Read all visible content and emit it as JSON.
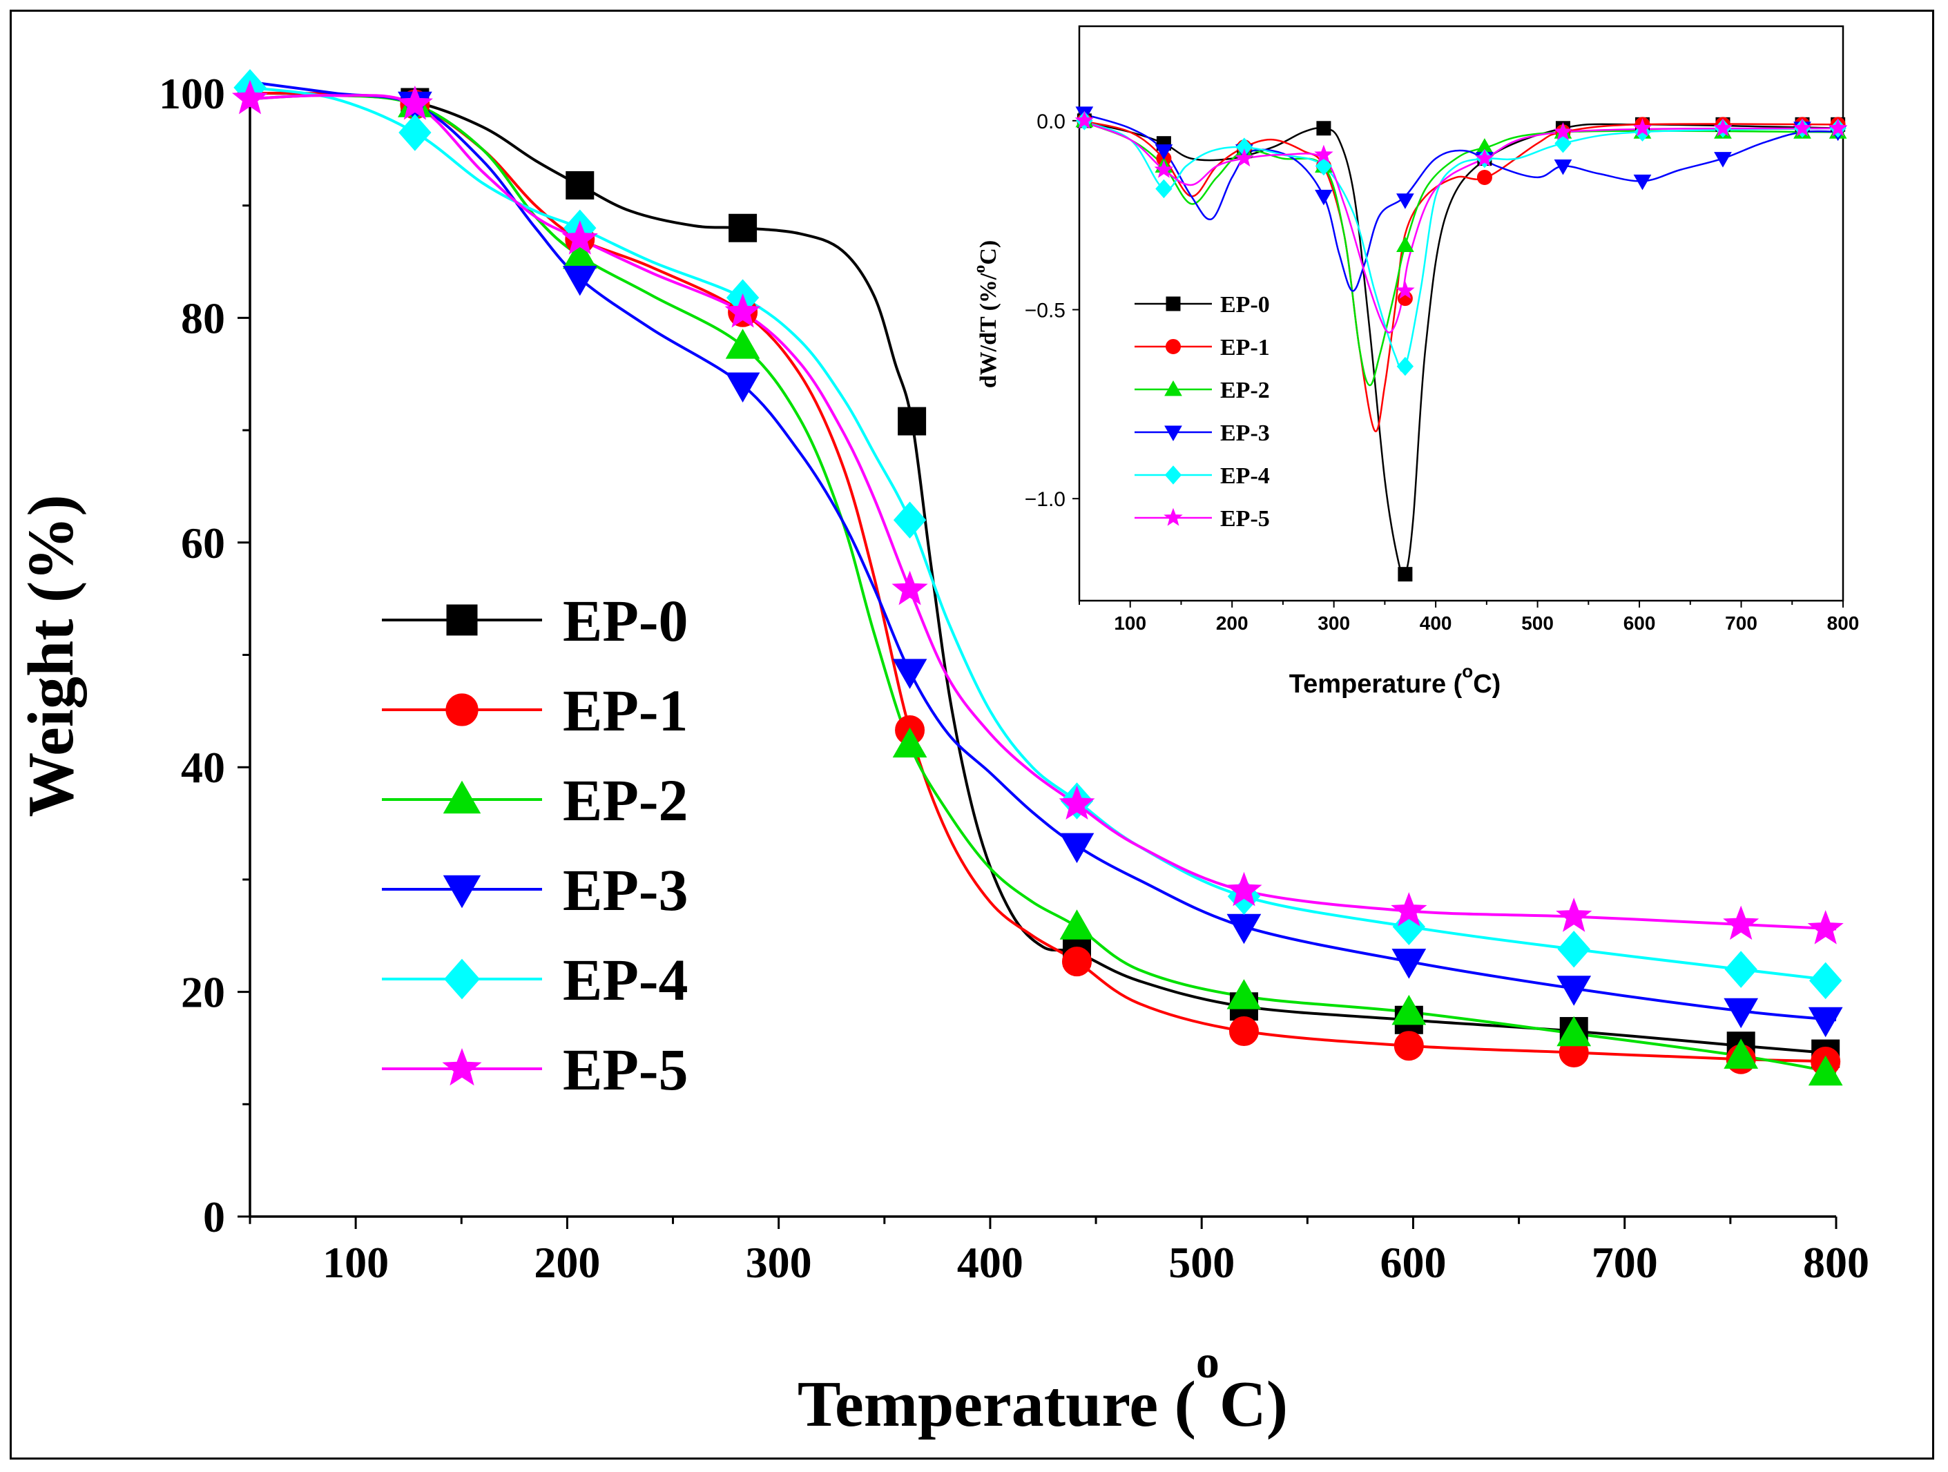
{
  "chart_data": [
    {
      "type": "line",
      "name": "TGA weight loss",
      "xlabel": "Temperature (",
      "xlabel_superscript": "o",
      "xlabel_unit": "C)",
      "ylabel": "Weight (%)",
      "xlim": [
        50,
        800
      ],
      "ylim": [
        0,
        100
      ],
      "xticks": [
        "100",
        "200",
        "300",
        "400",
        "500",
        "600",
        "700",
        "800"
      ],
      "yticks": [
        "0",
        "20",
        "40",
        "60",
        "80",
        "100"
      ],
      "legend_position": "center-left",
      "series": [
        {
          "name": "EP-0",
          "color": "#000000",
          "marker": "square",
          "x": [
            50,
            90,
            128,
            160,
            185,
            206,
            230,
            260,
            283,
            310,
            330,
            345,
            355,
            363,
            372,
            382,
            395,
            410,
            425,
            441,
            470,
            520,
            598,
            676,
            755,
            800
          ],
          "y": [
            100,
            99.9,
            99.2,
            97,
            94,
            91.8,
            89.5,
            88.2,
            88,
            87.5,
            86,
            82,
            76,
            70.8,
            58,
            45,
            34,
            27,
            24,
            23.5,
            21,
            18.7,
            17.5,
            16.5,
            15.2,
            14.5
          ],
          "mx": [
            128,
            206,
            283,
            363,
            441,
            520,
            598,
            676,
            755,
            795
          ],
          "my": [
            99.2,
            91.8,
            88,
            70.8,
            23.5,
            18.7,
            17.5,
            16.5,
            15.2,
            14.5
          ]
        },
        {
          "name": "EP-1",
          "color": "#ff0000",
          "marker": "circle",
          "x": [
            50,
            90,
            128,
            160,
            185,
            206,
            240,
            283,
            310,
            330,
            345,
            362,
            380,
            400,
            420,
            441,
            470,
            520,
            598,
            676,
            755,
            800
          ],
          "y": [
            100,
            99.9,
            99,
            95,
            90,
            87,
            84.5,
            80.5,
            75,
            67,
            57,
            43.3,
            34,
            28,
            25,
            22.7,
            19,
            16.5,
            15.2,
            14.6,
            14,
            13.8
          ],
          "mx": [
            128,
            206,
            283,
            362,
            441,
            520,
            598,
            676,
            755,
            795
          ],
          "my": [
            99,
            87,
            80.5,
            43.3,
            22.7,
            16.5,
            15.2,
            14.6,
            14,
            13.8
          ]
        },
        {
          "name": "EP-2",
          "color": "#00e000",
          "marker": "triangle-up",
          "x": [
            50,
            90,
            128,
            160,
            185,
            206,
            240,
            283,
            310,
            330,
            345,
            362,
            380,
            400,
            420,
            441,
            470,
            520,
            598,
            676,
            755,
            800
          ],
          "y": [
            99.5,
            99.8,
            99,
            95,
            89,
            85.5,
            82,
            77.5,
            71,
            62,
            52,
            42,
            36,
            31,
            28,
            25.8,
            22,
            19.6,
            18.2,
            16.3,
            14.3,
            12.8
          ],
          "mx": [
            128,
            206,
            283,
            362,
            441,
            520,
            598,
            676,
            755,
            795
          ],
          "my": [
            99,
            85.5,
            77.5,
            42,
            25.8,
            19.6,
            18.2,
            16.3,
            14.3,
            12.8
          ]
        },
        {
          "name": "EP-3",
          "color": "#0000ff",
          "marker": "triangle-down",
          "x": [
            50,
            90,
            128,
            160,
            185,
            206,
            240,
            283,
            310,
            330,
            345,
            362,
            380,
            400,
            420,
            441,
            470,
            520,
            598,
            676,
            755,
            800
          ],
          "y": [
            101,
            100,
            99,
            94,
            88,
            83.5,
            79,
            74,
            68,
            62,
            56,
            48.5,
            43,
            39.5,
            36,
            33,
            30,
            25.8,
            22.7,
            20.3,
            18.3,
            17.5
          ],
          "mx": [
            128,
            206,
            283,
            362,
            441,
            520,
            598,
            676,
            755,
            795
          ],
          "my": [
            99,
            83.5,
            74,
            48.5,
            33,
            25.8,
            22.7,
            20.3,
            18.3,
            17.5
          ]
        },
        {
          "name": "EP-4",
          "color": "#00ffff",
          "marker": "diamond",
          "x": [
            50,
            90,
            128,
            160,
            185,
            206,
            240,
            283,
            310,
            330,
            345,
            362,
            380,
            400,
            420,
            441,
            470,
            520,
            598,
            676,
            755,
            800
          ],
          "y": [
            100.5,
            99.5,
            96.5,
            92,
            89.5,
            88,
            85,
            81.8,
            78,
            73,
            68,
            62,
            53,
            45,
            40,
            37,
            33,
            28.5,
            25.8,
            23.8,
            22,
            21
          ],
          "mx": [
            50,
            128,
            206,
            283,
            362,
            441,
            520,
            598,
            676,
            755,
            795
          ],
          "my": [
            100.5,
            96.5,
            88,
            81.8,
            62,
            37,
            28.5,
            25.8,
            23.8,
            22,
            21
          ]
        },
        {
          "name": "EP-5",
          "color": "#ff00ff",
          "marker": "star",
          "x": [
            50,
            90,
            128,
            160,
            185,
            206,
            240,
            283,
            310,
            330,
            345,
            362,
            380,
            400,
            420,
            441,
            470,
            520,
            598,
            676,
            755,
            800
          ],
          "y": [
            99.5,
            99.8,
            99,
            93,
            89,
            87,
            84,
            80.5,
            76,
            70,
            64,
            55.8,
            48,
            43,
            39.5,
            36.7,
            33,
            29,
            27.2,
            26.7,
            26,
            25.6
          ],
          "mx": [
            50,
            128,
            206,
            283,
            362,
            441,
            520,
            598,
            676,
            755,
            795
          ],
          "my": [
            99.5,
            99,
            87,
            80.5,
            55.8,
            36.7,
            29,
            27.2,
            26.7,
            26,
            25.6
          ]
        }
      ]
    },
    {
      "type": "line",
      "name": "DTG inset",
      "xlabel": "Temperature (",
      "xlabel_superscript": "o",
      "xlabel_unit": "C)",
      "ylabel": "dW/dT (%/",
      "ylabel_superscript": "o",
      "ylabel_unit": "C)",
      "xlim": [
        50,
        800
      ],
      "ylim": [
        -1.27,
        0.25
      ],
      "xticks": [
        "100",
        "200",
        "300",
        "400",
        "500",
        "600",
        "700",
        "800"
      ],
      "yticks": [
        "0.0",
        "−0.5",
        "−1.0"
      ],
      "ytick_values": [
        0,
        -0.5,
        -1.0
      ],
      "legend_position": "left",
      "series": [
        {
          "name": "EP-0",
          "color": "#000000",
          "marker": "square",
          "x": [
            50,
            100,
            133,
            160,
            200,
            240,
            270,
            290,
            305,
            320,
            335,
            350,
            362,
            370,
            378,
            390,
            410,
            450,
            525,
            600,
            800
          ],
          "y": [
            0,
            -0.03,
            -0.06,
            -0.1,
            -0.1,
            -0.07,
            -0.03,
            -0.02,
            -0.05,
            -0.2,
            -0.55,
            -0.95,
            -1.15,
            -1.2,
            -1.05,
            -0.6,
            -0.25,
            -0.1,
            -0.02,
            -0.01,
            -0.02
          ],
          "mx": [
            55,
            133,
            212,
            290,
            370,
            448,
            525,
            603,
            682,
            760,
            795
          ],
          "my": [
            0,
            -0.06,
            -0.08,
            -0.02,
            -1.2,
            -0.1,
            -0.02,
            -0.01,
            -0.01,
            -0.01,
            -0.01
          ]
        },
        {
          "name": "EP-1",
          "color": "#ff0000",
          "marker": "circle",
          "x": [
            50,
            100,
            133,
            160,
            185,
            212,
            240,
            270,
            290,
            310,
            325,
            340,
            350,
            360,
            370,
            390,
            420,
            450,
            500,
            525,
            600,
            800
          ],
          "y": [
            0,
            -0.03,
            -0.1,
            -0.2,
            -0.12,
            -0.07,
            -0.05,
            -0.08,
            -0.12,
            -0.3,
            -0.6,
            -0.82,
            -0.7,
            -0.5,
            -0.3,
            -0.2,
            -0.15,
            -0.15,
            -0.06,
            -0.03,
            -0.01,
            -0.01
          ],
          "mx": [
            55,
            133,
            212,
            290,
            370,
            448,
            525,
            603,
            682,
            760,
            795
          ],
          "my": [
            0,
            -0.1,
            -0.07,
            -0.12,
            -0.47,
            -0.15,
            -0.03,
            -0.01,
            -0.01,
            -0.01,
            -0.01
          ]
        },
        {
          "name": "EP-2",
          "color": "#00e000",
          "marker": "triangle-up",
          "x": [
            50,
            100,
            133,
            160,
            185,
            212,
            250,
            290,
            310,
            325,
            335,
            345,
            360,
            370,
            390,
            420,
            450,
            525,
            800
          ],
          "y": [
            0,
            -0.05,
            -0.12,
            -0.22,
            -0.15,
            -0.08,
            -0.1,
            -0.12,
            -0.3,
            -0.6,
            -0.7,
            -0.62,
            -0.45,
            -0.33,
            -0.18,
            -0.1,
            -0.07,
            -0.03,
            -0.03
          ],
          "mx": [
            55,
            133,
            212,
            290,
            370,
            448,
            525,
            603,
            682,
            760,
            795
          ],
          "my": [
            0,
            -0.12,
            -0.08,
            -0.12,
            -0.33,
            -0.07,
            -0.03,
            -0.03,
            -0.03,
            -0.03,
            -0.03
          ]
        },
        {
          "name": "EP-3",
          "color": "#0000ff",
          "marker": "triangle-down",
          "x": [
            50,
            100,
            133,
            160,
            180,
            200,
            220,
            260,
            290,
            305,
            318,
            330,
            345,
            370,
            400,
            430,
            460,
            500,
            525,
            560,
            603,
            640,
            682,
            720,
            760,
            800
          ],
          "y": [
            0.02,
            -0.02,
            -0.08,
            -0.2,
            -0.26,
            -0.15,
            -0.08,
            -0.1,
            -0.2,
            -0.35,
            -0.45,
            -0.38,
            -0.25,
            -0.2,
            -0.1,
            -0.08,
            -0.12,
            -0.15,
            -0.12,
            -0.14,
            -0.16,
            -0.13,
            -0.1,
            -0.06,
            -0.03,
            -0.03
          ],
          "mx": [
            55,
            133,
            212,
            290,
            370,
            448,
            525,
            603,
            682,
            760,
            795
          ],
          "my": [
            0.02,
            -0.08,
            -0.08,
            -0.2,
            -0.21,
            -0.1,
            -0.12,
            -0.16,
            -0.1,
            -0.02,
            -0.03
          ]
        },
        {
          "name": "EP-4",
          "color": "#00ffff",
          "marker": "diamond",
          "x": [
            50,
            100,
            133,
            155,
            180,
            212,
            250,
            290,
            320,
            340,
            360,
            370,
            385,
            400,
            420,
            448,
            480,
            525,
            600,
            800
          ],
          "y": [
            0,
            -0.05,
            -0.18,
            -0.12,
            -0.08,
            -0.07,
            -0.09,
            -0.12,
            -0.25,
            -0.45,
            -0.62,
            -0.65,
            -0.45,
            -0.2,
            -0.12,
            -0.1,
            -0.1,
            -0.06,
            -0.03,
            -0.02
          ],
          "mx": [
            55,
            133,
            212,
            290,
            370,
            448,
            525,
            603,
            682,
            760,
            795
          ],
          "my": [
            0,
            -0.18,
            -0.07,
            -0.12,
            -0.65,
            -0.1,
            -0.06,
            -0.03,
            -0.02,
            -0.02,
            -0.02
          ]
        },
        {
          "name": "EP-5",
          "color": "#ff00ff",
          "marker": "star",
          "x": [
            50,
            100,
            133,
            160,
            185,
            212,
            250,
            290,
            310,
            330,
            345,
            355,
            365,
            375,
            400,
            448,
            525,
            800
          ],
          "y": [
            0,
            -0.05,
            -0.13,
            -0.17,
            -0.12,
            -0.1,
            -0.09,
            -0.1,
            -0.22,
            -0.4,
            -0.52,
            -0.56,
            -0.5,
            -0.35,
            -0.18,
            -0.1,
            -0.03,
            -0.02
          ],
          "mx": [
            55,
            133,
            212,
            290,
            370,
            448,
            525,
            603,
            682,
            760,
            795
          ],
          "my": [
            0,
            -0.13,
            -0.1,
            -0.09,
            -0.45,
            -0.1,
            -0.03,
            -0.02,
            -0.02,
            -0.02,
            -0.02
          ]
        }
      ]
    }
  ]
}
